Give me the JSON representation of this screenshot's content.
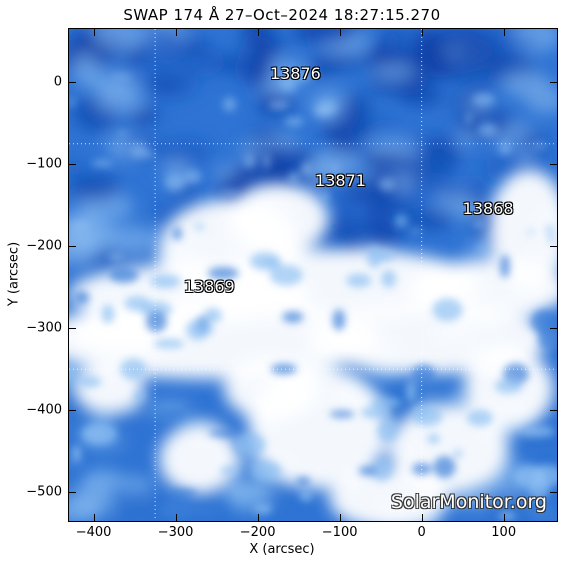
{
  "image": {
    "title": "SWAP 174 Å 27–Oct–2024 18:27:15.270",
    "watermark": "SolarMonitor.org",
    "palette": {
      "deep": "#0b3aa3",
      "mid": "#2f74d4",
      "light": "#8ec0f2",
      "bright": "#ffffff"
    },
    "x_axis": {
      "label": "X (arcsec)",
      "range": [
        -430,
        165
      ],
      "ticks": [
        "−400",
        "−300",
        "−200",
        "−100",
        "0",
        "100"
      ],
      "tick_values": [
        -400,
        -300,
        -200,
        -100,
        0,
        100
      ]
    },
    "y_axis": {
      "label": "Y (arcsec)",
      "range": [
        -535,
        65
      ],
      "ticks": [
        "0",
        "−100",
        "−200",
        "−300",
        "−400",
        "−500"
      ],
      "tick_values": [
        0,
        -100,
        -200,
        -300,
        -400,
        -500
      ]
    },
    "grid_lines": {
      "x": [
        -325,
        0
      ],
      "y": [
        -75,
        -350
      ]
    },
    "active_regions": [
      {
        "label": "13876",
        "x": -185,
        "y": 10
      },
      {
        "label": "13871",
        "x": -130,
        "y": -120
      },
      {
        "label": "13868",
        "x": 50,
        "y": -155
      },
      {
        "label": "13869",
        "x": -290,
        "y": -250
      }
    ]
  }
}
